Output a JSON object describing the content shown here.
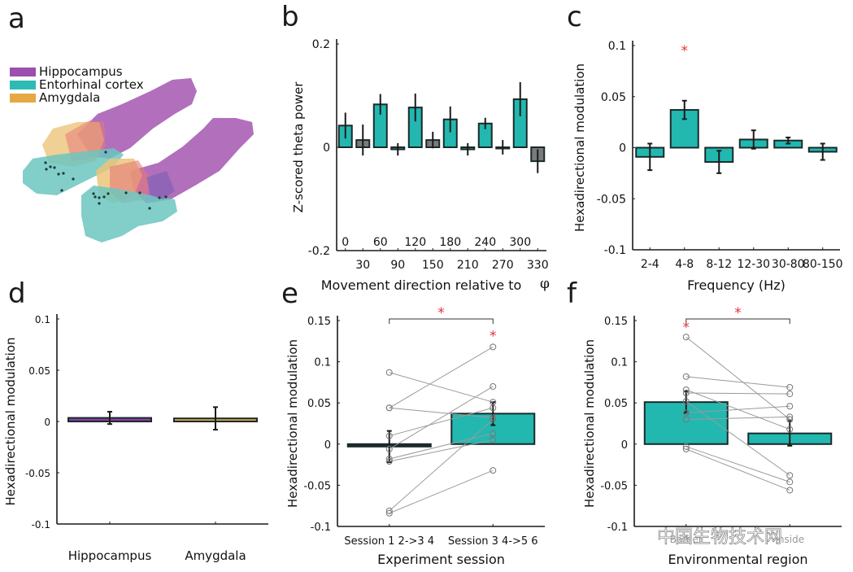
{
  "colors": {
    "teal": "#22b8b0",
    "gray": "#7a7a7a",
    "purple": "#8b3fa0",
    "orange": "#e0a84a",
    "hippocampus_region": "#a85fb5",
    "entorhinal_region": "#6cc5c0",
    "amygdala_region": "#e8c27a",
    "significance": "#e8303a",
    "axis": "#1a1a1a"
  },
  "panels": {
    "a": {
      "letter": "a",
      "legend": [
        {
          "label": "Hippocampus",
          "color": "#9b4fae"
        },
        {
          "label": "Entorhinal cortex",
          "color": "#2cbcb4"
        },
        {
          "label": "Amygdala",
          "color": "#e5a843"
        }
      ]
    },
    "b": {
      "letter": "b"
    },
    "c": {
      "letter": "c"
    },
    "d": {
      "letter": "d"
    },
    "e": {
      "letter": "e"
    },
    "f": {
      "letter": "f"
    }
  },
  "watermark": "中国生物技术网",
  "chart_data": [
    {
      "id": "b",
      "type": "bar",
      "title": "",
      "xlabel": "Movement direction relative to",
      "xlabel_symbol": "φ",
      "ylabel": "Z-scored theta power",
      "ylim": [
        -0.2,
        0.2
      ],
      "yticks": [
        -0.2,
        0,
        0.2
      ],
      "ytick_labels": [
        "-0.2",
        "0",
        "0.2"
      ],
      "categories": [
        "0",
        "30",
        "60",
        "90",
        "120",
        "150",
        "180",
        "210",
        "240",
        "270",
        "300",
        "330"
      ],
      "tick_labels_top_row": [
        "0",
        "60",
        "120",
        "180",
        "240",
        "300"
      ],
      "tick_labels_bottom_row": [
        "30",
        "90",
        "150",
        "210",
        "270",
        "330"
      ],
      "values": [
        0.042,
        0.014,
        0.083,
        -0.004,
        0.077,
        0.014,
        0.054,
        -0.004,
        0.046,
        0.0,
        0.093,
        -0.027
      ],
      "errors": [
        0.025,
        0.03,
        0.02,
        0.012,
        0.027,
        0.016,
        0.025,
        0.012,
        0.011,
        0.014,
        0.033,
        0.023
      ],
      "bar_colors": [
        "teal",
        "gray",
        "teal",
        "gray",
        "teal",
        "gray",
        "teal",
        "gray",
        "teal",
        "gray",
        "teal",
        "gray"
      ],
      "grid": false
    },
    {
      "id": "c",
      "type": "bar",
      "title": "",
      "xlabel": "Frequency  (Hz)",
      "ylabel": "Hexadirectional modulation",
      "ylim": [
        -0.1,
        0.1
      ],
      "yticks": [
        -0.1,
        -0.05,
        0,
        0.05,
        0.1
      ],
      "ytick_labels": [
        "-0.1",
        "-0.05",
        "0",
        "0.05",
        "0.1"
      ],
      "categories": [
        "2-4",
        "4-8",
        "8-12",
        "12-30",
        "30-80",
        "80-150"
      ],
      "values": [
        -0.009,
        0.037,
        -0.014,
        0.008,
        0.007,
        -0.004
      ],
      "errors": [
        0.013,
        0.009,
        0.011,
        0.009,
        0.003,
        0.008
      ],
      "significance": [
        {
          "category": "4-8",
          "marker": "*"
        }
      ],
      "grid": false
    },
    {
      "id": "d",
      "type": "bar",
      "title": "",
      "xlabel": "",
      "ylabel": "Hexadirectional modulation",
      "ylim": [
        -0.1,
        0.1
      ],
      "yticks": [
        -0.1,
        -0.05,
        0,
        0.05,
        0.1
      ],
      "ytick_labels": [
        "-0.1",
        "-0.05",
        "0",
        "0.05",
        "0.1"
      ],
      "categories": [
        "Hippocampus",
        "Amygdala"
      ],
      "values": [
        0.0035,
        0.003
      ],
      "errors": [
        0.006,
        0.011
      ],
      "bar_colors": [
        "purple",
        "orange"
      ],
      "grid": false
    },
    {
      "id": "e",
      "type": "bar",
      "title": "",
      "xlabel": "Experiment session",
      "ylabel": "Hexadirectional modulation",
      "ylim": [
        -0.1,
        0.15
      ],
      "yticks": [
        -0.1,
        -0.05,
        0,
        0.05,
        0.1,
        0.15
      ],
      "ytick_labels": [
        "-0.1",
        "-0.05",
        "0",
        "0.05",
        "0.1",
        "0.15"
      ],
      "categories": [
        "Session 1 2->3 4",
        "Session 3 4->5 6"
      ],
      "values": [
        -0.003,
        0.037
      ],
      "errors": [
        0.019,
        0.014
      ],
      "bar_colors": [
        "#222a2a",
        "teal"
      ],
      "paired_points": [
        [
          0.087,
          0.051
        ],
        [
          0.044,
          0.118
        ],
        [
          0.044,
          0.032
        ],
        [
          0.01,
          0.044
        ],
        [
          -0.006,
          0.07
        ],
        [
          -0.018,
          0.013
        ],
        [
          -0.021,
          0.005
        ],
        [
          -0.081,
          0.03
        ],
        [
          -0.084,
          -0.032
        ]
      ],
      "significance": [
        {
          "type": "bracket",
          "between": [
            "Session 1 2->3 4",
            "Session 3 4->5 6"
          ],
          "marker": "*"
        },
        {
          "category": "Session 3 4->5 6",
          "marker": "*"
        }
      ],
      "grid": false
    },
    {
      "id": "f",
      "type": "bar",
      "title": "",
      "xlabel": "Environmental region",
      "ylabel": "Hexadirectional modulation",
      "ylim": [
        -0.1,
        0.15
      ],
      "yticks": [
        -0.1,
        -0.05,
        0,
        0.05,
        0.1,
        0.15
      ],
      "ytick_labels": [
        "-0.1",
        "-0.05",
        "0",
        "0.05",
        "0.1",
        "0.15"
      ],
      "categories": [
        "Border",
        "Inside"
      ],
      "categories_note": "tick labels partly obscured by watermark",
      "values": [
        0.051,
        0.013
      ],
      "errors": [
        0.013,
        0.015
      ],
      "bar_colors": [
        "teal",
        "teal"
      ],
      "paired_points": [
        [
          0.13,
          0.03
        ],
        [
          0.082,
          0.069
        ],
        [
          0.062,
          0.061
        ],
        [
          0.066,
          0.018
        ],
        [
          0.052,
          -0.038
        ],
        [
          0.038,
          0.046
        ],
        [
          0.03,
          0.033
        ],
        [
          -0.003,
          -0.046
        ],
        [
          -0.006,
          -0.056
        ]
      ],
      "significance": [
        {
          "type": "bracket",
          "between": [
            "Border",
            "Inside"
          ],
          "marker": "*"
        },
        {
          "category": "Border",
          "marker": "*"
        }
      ],
      "grid": false
    }
  ]
}
